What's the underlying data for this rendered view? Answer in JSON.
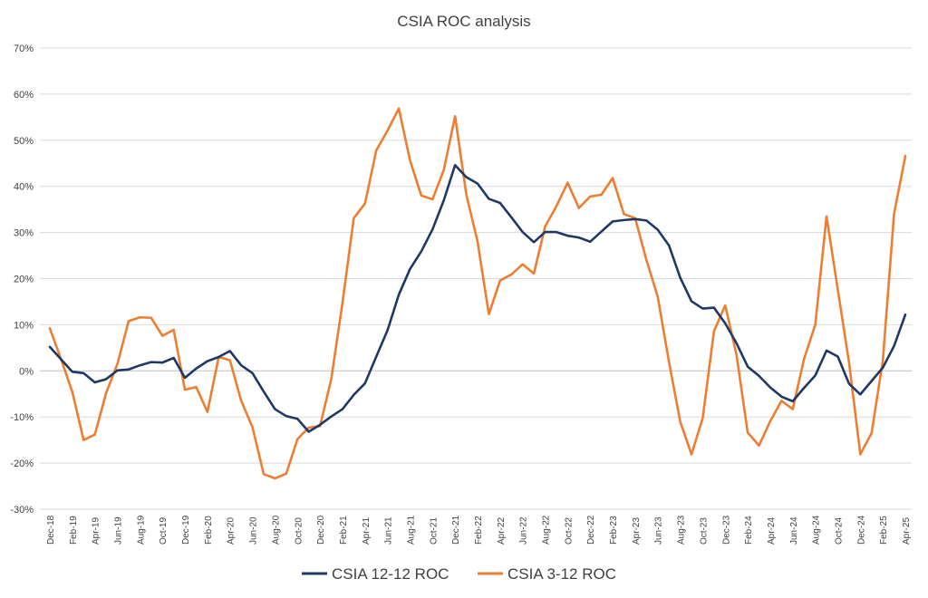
{
  "chart_data": {
    "type": "line",
    "title": "CSIA ROC analysis",
    "xlabel": "",
    "ylabel": "",
    "ylim": [
      -30,
      70
    ],
    "yticks": [
      -30,
      -20,
      -10,
      0,
      10,
      20,
      30,
      40,
      50,
      60,
      70
    ],
    "ytick_labels": [
      "-30%",
      "-20%",
      "-10%",
      "0%",
      "10%",
      "20%",
      "30%",
      "40%",
      "50%",
      "60%",
      "70%"
    ],
    "grid": "horizontal",
    "legend_position": "bottom",
    "x": [
      "Dec-18",
      "Jan-19",
      "Feb-19",
      "Mar-19",
      "Apr-19",
      "May-19",
      "Jun-19",
      "Jul-19",
      "Aug-19",
      "Sep-19",
      "Oct-19",
      "Nov-19",
      "Dec-19",
      "Jan-20",
      "Feb-20",
      "Mar-20",
      "Apr-20",
      "May-20",
      "Jun-20",
      "Jul-20",
      "Aug-20",
      "Sep-20",
      "Oct-20",
      "Nov-20",
      "Dec-20",
      "Jan-21",
      "Feb-21",
      "Mar-21",
      "Apr-21",
      "May-21",
      "Jun-21",
      "Jul-21",
      "Aug-21",
      "Sep-21",
      "Oct-21",
      "Nov-21",
      "Dec-21",
      "Jan-22",
      "Feb-22",
      "Mar-22",
      "Apr-22",
      "May-22",
      "Jun-22",
      "Jul-22",
      "Aug-22",
      "Sep-22",
      "Oct-22",
      "Nov-22",
      "Dec-22",
      "Jan-23",
      "Feb-23",
      "Mar-23",
      "Apr-23",
      "May-23",
      "Jun-23",
      "Jul-23",
      "Aug-23",
      "Sep-23",
      "Oct-23",
      "Nov-23",
      "Dec-23",
      "Jan-24",
      "Feb-24",
      "Mar-24",
      "Apr-24",
      "May-24",
      "Jun-24",
      "Jul-24",
      "Aug-24",
      "Sep-24",
      "Oct-24",
      "Nov-24",
      "Dec-24",
      "Jan-25",
      "Feb-25",
      "Mar-25",
      "Apr-25"
    ],
    "x_tick_labels": [
      "Dec-18",
      "Feb-19",
      "Apr-19",
      "Jun-19",
      "Aug-19",
      "Oct-19",
      "Dec-19",
      "Feb-20",
      "Apr-20",
      "Jun-20",
      "Aug-20",
      "Oct-20",
      "Dec-20",
      "Feb-21",
      "Apr-21",
      "Jun-21",
      "Aug-21",
      "Oct-21",
      "Dec-21",
      "Feb-22",
      "Apr-22",
      "Jun-22",
      "Aug-22",
      "Oct-22",
      "Dec-22",
      "Feb-23",
      "Apr-23",
      "Jun-23",
      "Aug-23",
      "Oct-23",
      "Dec-23",
      "Feb-24",
      "Apr-24",
      "Jun-24",
      "Aug-24",
      "Oct-24",
      "Dec-24",
      "Feb-25",
      "Apr-25"
    ],
    "series": [
      {
        "name": "CSIA 12-12 ROC",
        "color": "#203864",
        "values": [
          5.2,
          2.5,
          -0.2,
          -0.5,
          -2.5,
          -1.8,
          0.1,
          0.3,
          1.2,
          1.9,
          1.8,
          2.8,
          -1.5,
          0.5,
          2.1,
          3.0,
          4.3,
          1.2,
          -0.5,
          -4.5,
          -8.3,
          -9.8,
          -10.4,
          -13.2,
          -11.7,
          -9.9,
          -8.3,
          -5.2,
          -2.7,
          3.1,
          8.8,
          16.5,
          22.1,
          25.9,
          30.7,
          37.0,
          44.6,
          42.0,
          40.6,
          37.3,
          36.4,
          33.3,
          30.1,
          27.9,
          30.1,
          30.1,
          29.3,
          28.9,
          28.0,
          30.2,
          32.4,
          32.7,
          32.9,
          32.6,
          30.6,
          27.2,
          20.2,
          15.1,
          13.5,
          13.7,
          10.3,
          6.0,
          0.9,
          -1.1,
          -3.6,
          -5.6,
          -6.6,
          -3.7,
          -1.0,
          4.4,
          3.1,
          -2.8,
          -5.1,
          -2.2,
          0.7,
          5.4,
          12.2
        ]
      },
      {
        "name": "CSIA 3-12 ROC",
        "color": "#ed7d31",
        "values": [
          9.2,
          2.5,
          -4.6,
          -15.0,
          -13.8,
          -4.8,
          1.5,
          10.8,
          11.6,
          11.5,
          7.6,
          8.9,
          -4.1,
          -3.5,
          -8.9,
          3.0,
          2.3,
          -6.5,
          -12.2,
          -22.4,
          -23.3,
          -22.3,
          -14.8,
          -12.3,
          -12.0,
          -1.8,
          14.8,
          33.1,
          36.3,
          47.8,
          52.1,
          56.9,
          45.6,
          38.0,
          37.2,
          43.6,
          55.2,
          38.2,
          28.0,
          12.3,
          19.6,
          20.9,
          23.1,
          21.1,
          31.3,
          35.7,
          40.8,
          35.3,
          37.8,
          38.2,
          41.8,
          34.0,
          33.1,
          24.0,
          16.1,
          2.0,
          -11.0,
          -18.1,
          -10.2,
          8.6,
          14.2,
          3.5,
          -13.4,
          -16.2,
          -10.9,
          -6.5,
          -8.3,
          2.6,
          10.0,
          33.5,
          17.6,
          1.8,
          -18.1,
          -13.5,
          2.2,
          34.1,
          46.6
        ]
      }
    ]
  }
}
